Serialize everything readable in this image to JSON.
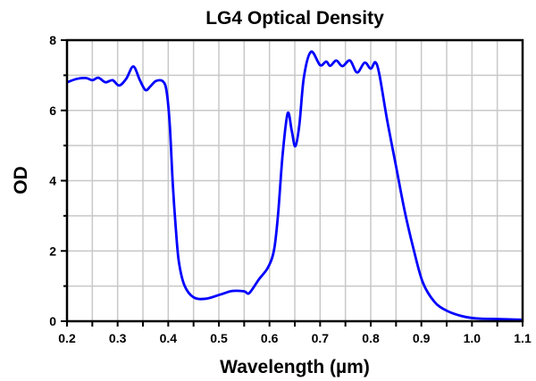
{
  "chart_data": {
    "type": "line",
    "title": "LG4 Optical Density",
    "xlabel": "Wavelength (µm)",
    "ylabel": "OD",
    "xlim": [
      0.2,
      1.1
    ],
    "ylim": [
      0,
      8
    ],
    "xticks": [
      "0.2",
      "0.3",
      "0.4",
      "0.5",
      "0.6",
      "0.7",
      "0.8",
      "0.9",
      "1.0",
      "1.1"
    ],
    "yticks": [
      "0",
      "2",
      "4",
      "6",
      "8"
    ],
    "grid": true,
    "line_color": "#0000ff",
    "series": [
      {
        "x": [
          0.2,
          0.22,
          0.238,
          0.25,
          0.262,
          0.276,
          0.29,
          0.303,
          0.317,
          0.331,
          0.344,
          0.355,
          0.365,
          0.376,
          0.39,
          0.397,
          0.403,
          0.409,
          0.415,
          0.421,
          0.432,
          0.45,
          0.474,
          0.503,
          0.526,
          0.55,
          0.56,
          0.579,
          0.597,
          0.609,
          0.617,
          0.626,
          0.636,
          0.644,
          0.651,
          0.659,
          0.668,
          0.682,
          0.7,
          0.712,
          0.72,
          0.732,
          0.744,
          0.759,
          0.773,
          0.788,
          0.8,
          0.809,
          0.817,
          0.832,
          0.85,
          0.867,
          0.885,
          0.903,
          0.926,
          0.95,
          0.979,
          1.009,
          1.056,
          1.1
        ],
        "y": [
          6.8,
          6.9,
          6.92,
          6.86,
          6.93,
          6.8,
          6.86,
          6.71,
          6.9,
          7.25,
          6.86,
          6.58,
          6.69,
          6.84,
          6.82,
          6.52,
          5.59,
          3.9,
          2.63,
          1.69,
          1.02,
          0.68,
          0.64,
          0.76,
          0.86,
          0.85,
          0.8,
          1.19,
          1.53,
          2.03,
          3.05,
          4.75,
          5.92,
          5.42,
          4.98,
          5.59,
          6.95,
          7.67,
          7.29,
          7.39,
          7.27,
          7.42,
          7.26,
          7.42,
          7.08,
          7.36,
          7.19,
          7.37,
          7.03,
          5.76,
          4.41,
          3.14,
          2.03,
          1.1,
          0.55,
          0.3,
          0.15,
          0.08,
          0.06,
          0.04
        ]
      }
    ]
  }
}
